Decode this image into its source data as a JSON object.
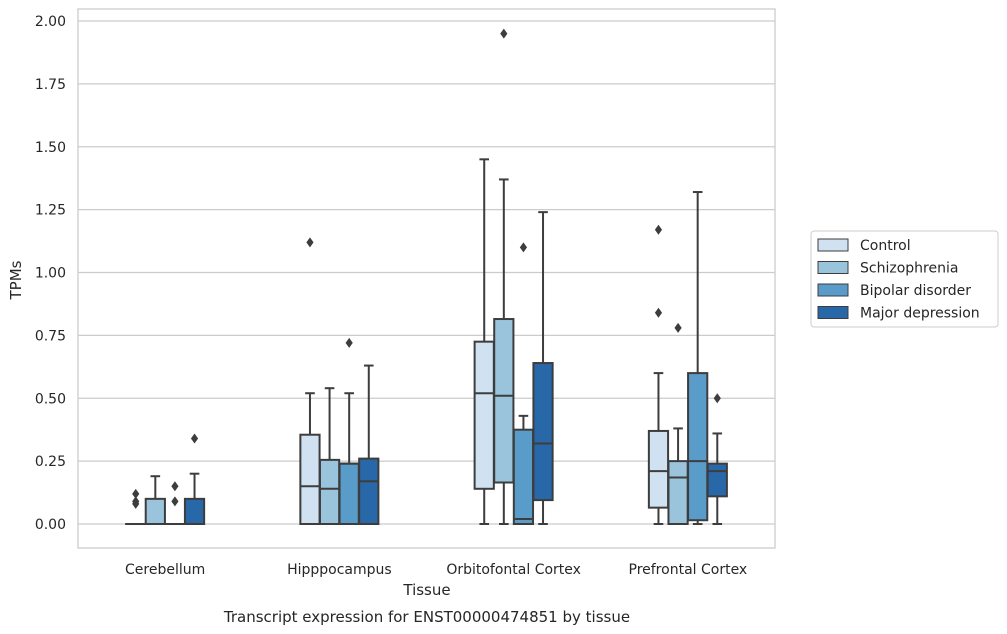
{
  "chart_data": {
    "type": "box",
    "title": "",
    "caption": "Transcript expression for ENST00000474851 by tissue",
    "xlabel": "Tissue",
    "ylabel": "TPMs",
    "ylim": [
      -0.1,
      2.03
    ],
    "yticks": [
      "0.00",
      "0.25",
      "0.50",
      "0.75",
      "1.00",
      "1.25",
      "1.50",
      "1.75",
      "2.00"
    ],
    "categories": [
      "Cerebellum",
      "Hipppocampus",
      "Orbitofontal Cortex",
      "Prefrontal Cortex"
    ],
    "grid": true,
    "legend_position": "right",
    "series": [
      {
        "name": "Control",
        "color": "#d0e1f2",
        "boxes": [
          {
            "whislo": 0.0,
            "q1": 0.0,
            "med": 0.0,
            "q3": 0.0,
            "whishi": 0.0,
            "fliers": [
              0.08,
              0.09,
              0.12
            ]
          },
          {
            "whislo": 0.0,
            "q1": 0.0,
            "med": 0.15,
            "q3": 0.355,
            "whishi": 0.52,
            "fliers": [
              1.12
            ]
          },
          {
            "whislo": 0.0,
            "q1": 0.14,
            "med": 0.52,
            "q3": 0.725,
            "whishi": 1.45,
            "fliers": []
          },
          {
            "whislo": 0.0,
            "q1": 0.065,
            "med": 0.21,
            "q3": 0.37,
            "whishi": 0.6,
            "fliers": [
              0.84,
              1.17
            ]
          }
        ]
      },
      {
        "name": "Schizophrenia",
        "color": "#9ac3dc",
        "boxes": [
          {
            "whislo": 0.0,
            "q1": 0.0,
            "med": 0.0,
            "q3": 0.1,
            "whishi": 0.19,
            "fliers": []
          },
          {
            "whislo": 0.0,
            "q1": 0.0,
            "med": 0.14,
            "q3": 0.255,
            "whishi": 0.54,
            "fliers": []
          },
          {
            "whislo": 0.0,
            "q1": 0.165,
            "med": 0.51,
            "q3": 0.815,
            "whishi": 1.37,
            "fliers": [
              1.95
            ]
          },
          {
            "whislo": 0.0,
            "q1": 0.0,
            "med": 0.185,
            "q3": 0.25,
            "whishi": 0.38,
            "fliers": [
              0.78
            ]
          }
        ]
      },
      {
        "name": "Bipolar disorder",
        "color": "#5a9cc9",
        "boxes": [
          {
            "whislo": 0.0,
            "q1": 0.0,
            "med": 0.0,
            "q3": 0.0,
            "whishi": 0.0,
            "fliers": [
              0.09,
              0.15
            ]
          },
          {
            "whislo": 0.0,
            "q1": 0.0,
            "med": 0.24,
            "q3": 0.24,
            "whishi": 0.52,
            "fliers": [
              0.72
            ]
          },
          {
            "whislo": 0.0,
            "q1": 0.0,
            "med": 0.02,
            "q3": 0.375,
            "whishi": 0.43,
            "fliers": [
              1.1
            ]
          },
          {
            "whislo": 0.0,
            "q1": 0.015,
            "med": 0.25,
            "q3": 0.6,
            "whishi": 1.32,
            "fliers": []
          }
        ]
      },
      {
        "name": "Major depression",
        "color": "#2968a8",
        "boxes": [
          {
            "whislo": 0.0,
            "q1": 0.0,
            "med": 0.0,
            "q3": 0.1,
            "whishi": 0.2,
            "fliers": [
              0.34
            ]
          },
          {
            "whislo": 0.0,
            "q1": 0.0,
            "med": 0.17,
            "q3": 0.26,
            "whishi": 0.63,
            "fliers": []
          },
          {
            "whislo": 0.0,
            "q1": 0.095,
            "med": 0.32,
            "q3": 0.64,
            "whishi": 1.24,
            "fliers": []
          },
          {
            "whislo": 0.0,
            "q1": 0.11,
            "med": 0.21,
            "q3": 0.24,
            "whishi": 0.36,
            "fliers": [
              0.5
            ]
          }
        ]
      }
    ]
  }
}
